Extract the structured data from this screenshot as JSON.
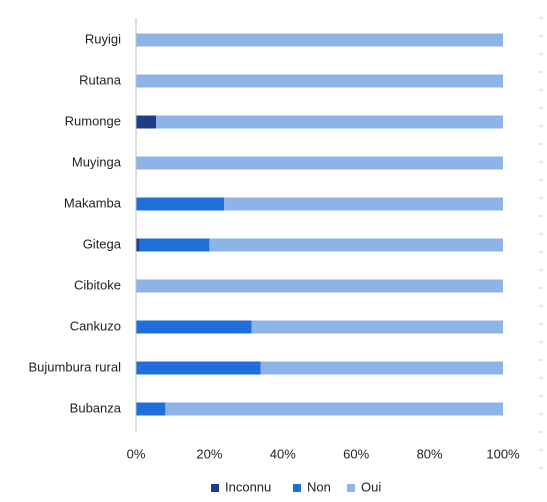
{
  "chart_data": {
    "type": "bar",
    "orientation": "horizontal",
    "stacked": "percent",
    "categories": [
      "Ruyigi",
      "Rutana",
      "Rumonge",
      "Muyinga",
      "Makamba",
      "Gitega",
      "Cibitoke",
      "Cankuzo",
      "Bujumbura rural",
      "Bubanza"
    ],
    "series": [
      {
        "name": "Inconnu",
        "color": "#1F3C88",
        "values": [
          0,
          0,
          5.5,
          0,
          0,
          1,
          0,
          0,
          0,
          0
        ]
      },
      {
        "name": "Non",
        "color": "#1E6FD9",
        "values": [
          0,
          0,
          0,
          0,
          24,
          19,
          0,
          31.5,
          34,
          8
        ]
      },
      {
        "name": "Oui",
        "color": "#8DB3E8",
        "values": [
          100,
          100,
          94.5,
          100,
          76,
          80,
          100,
          68.5,
          66,
          92
        ]
      }
    ],
    "x_ticks": [
      "0%",
      "20%",
      "40%",
      "60%",
      "80%",
      "100%"
    ],
    "xlim": [
      0,
      100
    ],
    "grid": false,
    "legend_position": "bottom"
  }
}
